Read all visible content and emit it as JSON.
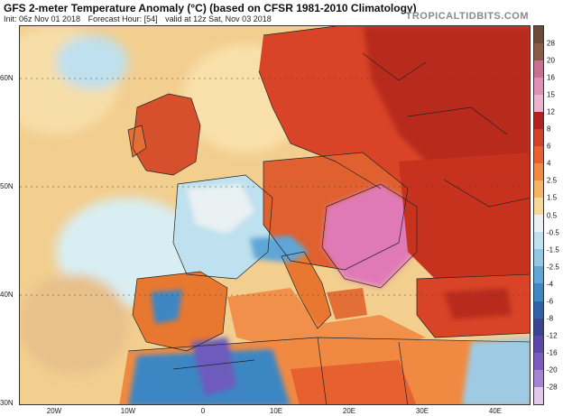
{
  "header": {
    "title": "GFS 2-meter Temperature Anomaly (°C) (based on CFSR 1981-2010 Climatology)",
    "init": "Init: 06z Nov 01 2018",
    "forecast_hour": "Forecast Hour: [54]",
    "valid": "valid at 12z Sat, Nov 03 2018",
    "watermark": "TROPICALTIDBITS.COM"
  },
  "map": {
    "lat_labels": [
      "60N",
      "50N",
      "40N",
      "30N"
    ],
    "lon_labels": [
      "20W",
      "10W",
      "0",
      "10E",
      "20E",
      "30E",
      "40E"
    ],
    "colors": {
      "ocean_warm": "#f2ce8f",
      "ocean_cool": "#cfe6ee",
      "land_hot": "#cc2a1a",
      "land_warm": "#e8782f",
      "land_mild": "#f4a867",
      "cold_blue": "#3e86c4",
      "cold_light": "#9ecbe3",
      "cold_purple": "#6e5cbc",
      "extreme_pink": "#e07ab7",
      "border_line": "#222222"
    }
  },
  "colorbar": {
    "labels": [
      "28",
      "20",
      "16",
      "15",
      "12",
      "8",
      "6",
      "4",
      "2.5",
      "1.5",
      "0.5",
      "-0.5",
      "-1.5",
      "-2.5",
      "-4",
      "-6",
      "-8",
      "-12",
      "-16",
      "-20",
      "-28"
    ],
    "colors": [
      "#6b4a3a",
      "#8a5a49",
      "#c9708e",
      "#e090b6",
      "#eab2cc",
      "#b52121",
      "#d2402a",
      "#e6612f",
      "#f08a42",
      "#f6b267",
      "#f8d79b",
      "#e9f1f3",
      "#bfe0ee",
      "#94c7e2",
      "#5fa6d6",
      "#3f86c4",
      "#2e61a8",
      "#3a4592",
      "#5a47a8",
      "#7b5bbd",
      "#a684d4",
      "#e0c9ea"
    ]
  }
}
